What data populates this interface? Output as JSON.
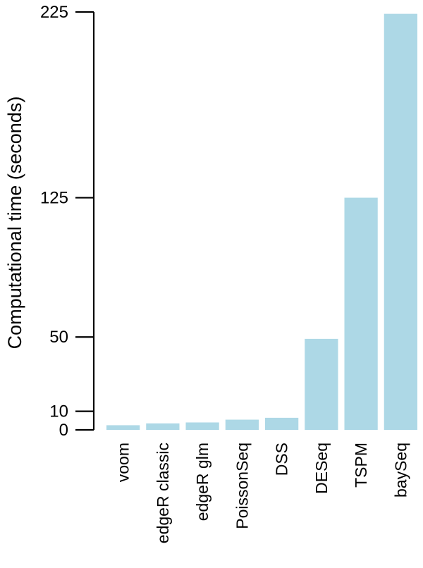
{
  "chart_data": {
    "type": "bar",
    "ylabel": "Computational time (seconds)",
    "xlabel": "",
    "categories": [
      "voom",
      "edgeR classic",
      "edgeR glm",
      "PoissonSeq",
      "DSS",
      "DESeq",
      "TSPM",
      "baySeq"
    ],
    "values": [
      2.5,
      3.5,
      4,
      5.5,
      6.5,
      49,
      125,
      224
    ],
    "yticks": [
      0,
      10,
      50,
      125,
      225
    ],
    "ylim": [
      0,
      225
    ],
    "grid": false,
    "bar_color": "#add8e6",
    "axis_color": "#000000"
  }
}
